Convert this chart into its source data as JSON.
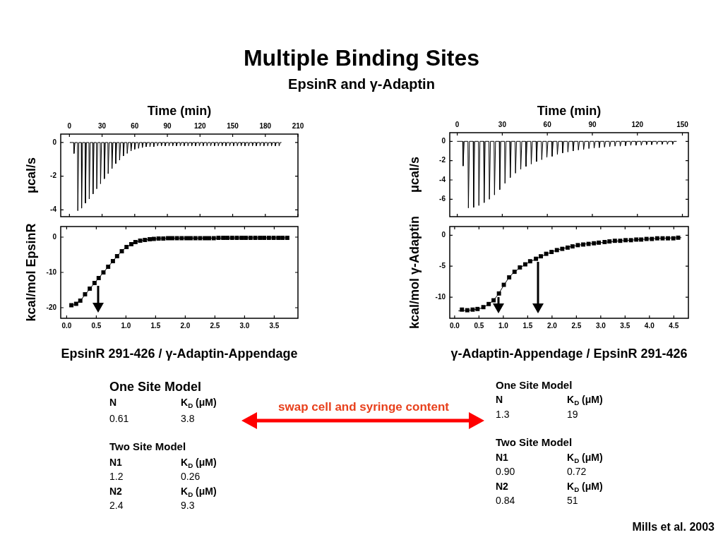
{
  "chart_data": [
    {
      "type": "other",
      "title": "Multiple Binding Sites",
      "subtitle": "EpsinR and γ-Adaptin"
    },
    {
      "type": "line",
      "xlabel": "Time (min)",
      "ylabel": "μcal/s",
      "xlim": [
        -8,
        210
      ],
      "xticks": [
        0,
        30,
        60,
        90,
        120,
        150,
        180,
        210
      ],
      "ylim": [
        -4.4,
        0.5
      ],
      "yticks": [
        -4,
        -2,
        0
      ],
      "grid": false,
      "marker": "none",
      "series": [
        {
          "color": "#000000",
          "x": [
            0.4,
            3.9,
            4.2,
            5.1,
            7.4,
            7.7,
            8.6,
            10.9,
            11.2,
            12.1,
            14.4,
            14.7,
            15.6,
            17.9,
            18.2,
            19.1,
            21.4,
            21.7,
            22.6,
            24.8,
            25.1,
            26.0,
            28.3,
            28.6,
            29.5,
            31.8,
            32.1,
            33.0,
            35.3,
            35.6,
            36.5,
            38.8,
            39.1,
            40.0,
            42.3,
            42.6,
            43.5,
            45.8,
            46.1,
            47.0,
            49.3,
            49.6,
            50.5,
            52.8,
            53.1,
            54.0,
            56.3,
            56.6,
            57.5,
            59.7,
            60.0,
            60.9,
            63.2,
            63.5,
            64.4,
            66.7,
            67.0,
            67.9,
            70.2,
            70.5,
            71.4,
            73.7,
            74.0,
            74.9,
            77.2,
            77.5,
            78.4,
            80.7,
            81.0,
            81.9,
            84.2,
            84.5,
            85.4,
            87.7,
            88.0,
            88.9,
            91.2,
            91.5,
            92.4,
            94.6,
            94.9,
            95.8,
            98.1,
            98.4,
            99.3,
            101.6,
            101.9,
            102.8,
            105.1,
            105.4,
            106.3,
            108.6,
            108.9,
            109.8,
            112.1,
            112.4,
            113.3,
            115.6,
            115.9,
            116.8,
            119.1,
            119.4,
            120.3,
            122.6,
            122.9,
            123.8,
            126.1,
            126.4,
            127.3,
            129.5,
            129.8,
            130.7,
            133.0,
            133.3,
            134.2,
            136.5,
            136.8,
            137.7,
            140.0,
            140.3,
            141.2,
            143.5,
            143.8,
            144.7,
            147.0,
            147.3,
            148.2,
            150.5,
            150.8,
            151.7,
            154.0,
            154.3,
            155.2,
            157.5,
            157.8,
            158.7,
            161.0,
            161.3,
            162.2,
            164.4,
            164.7,
            165.6,
            167.9,
            168.2,
            169.1,
            171.4,
            171.7,
            172.6,
            174.9,
            175.2,
            176.1,
            178.4,
            178.7,
            179.6,
            181.9,
            182.2,
            183.1,
            185.4,
            185.7,
            186.6,
            188.9,
            189.2,
            190.1,
            192.4,
            192.7,
            193.6,
            194.6
          ],
          "values": [
            0,
            0,
            -0.65,
            0,
            0,
            -4.05,
            0,
            0,
            -3.9,
            0,
            0,
            -3.6,
            0,
            0,
            -3.35,
            0,
            0,
            -3.05,
            0,
            0,
            -2.75,
            0,
            0,
            -2.45,
            0,
            0,
            -2.15,
            0,
            0,
            -1.85,
            0,
            0,
            -1.55,
            0,
            0,
            -1.25,
            0,
            0,
            -1.05,
            0,
            0,
            -0.8,
            0,
            0,
            -0.65,
            0,
            0,
            -0.5,
            0,
            0,
            -0.4,
            0,
            0,
            -0.35,
            0,
            0,
            -0.3,
            0,
            0,
            -0.25,
            0,
            0,
            -0.25,
            0,
            0,
            -0.25,
            0,
            0,
            -0.2,
            0,
            0,
            -0.2,
            0,
            0,
            -0.2,
            0,
            0,
            -0.2,
            0,
            0,
            -0.2,
            0,
            0,
            -0.2,
            0,
            0,
            -0.2,
            0,
            0,
            -0.2,
            0,
            0,
            -0.2,
            0,
            0,
            -0.2,
            0,
            0,
            -0.2,
            0,
            0,
            -0.2,
            0,
            0,
            -0.2,
            0,
            0,
            -0.2,
            0,
            0,
            -0.2,
            0,
            0,
            -0.2,
            0,
            0,
            -0.2,
            0,
            0,
            -0.2,
            0,
            0,
            -0.2,
            0,
            0,
            -0.2,
            0,
            0,
            -0.2,
            0,
            0,
            -0.2,
            0,
            0,
            -0.2,
            0,
            0,
            -0.2,
            0,
            0,
            -0.2,
            0,
            0,
            -0.2,
            0,
            0,
            -0.2,
            0,
            0,
            -0.2,
            0,
            0,
            -0.2,
            0,
            0,
            -0.2,
            0,
            0,
            -0.2,
            0,
            0,
            -0.2,
            0,
            0,
            -0.2,
            0,
            0
          ]
        }
      ]
    },
    {
      "type": "scatter",
      "xlabel": "EpsinR 291-426 / γ-Adaptin-Appendage",
      "ylabel": "kcal/mol EpsinR",
      "xlim": [
        -0.1,
        3.9
      ],
      "xticks": [
        {
          "value": 0,
          "label": "0.0"
        },
        0.5,
        {
          "value": 1,
          "label": "1.0"
        },
        1.5,
        {
          "value": 2,
          "label": "2.0"
        },
        2.5,
        {
          "value": 3,
          "label": "3.0"
        },
        3.5
      ],
      "ylim": [
        -23,
        3
      ],
      "yticks": [
        -20,
        -10,
        0
      ],
      "grid": false,
      "series": [
        {
          "color": "#000000",
          "marker": "square",
          "x": [
            0.08,
            0.16,
            0.23,
            0.31,
            0.39,
            0.47,
            0.54,
            0.62,
            0.7,
            0.78,
            0.85,
            0.93,
            1.01,
            1.09,
            1.16,
            1.24,
            1.32,
            1.4,
            1.47,
            1.55,
            1.63,
            1.71,
            1.78,
            1.86,
            1.94,
            2.02,
            2.09,
            2.17,
            2.25,
            2.33,
            2.4,
            2.48,
            2.56,
            2.64,
            2.71,
            2.79,
            2.87,
            2.95,
            3.02,
            3.1,
            3.18,
            3.26,
            3.33,
            3.41,
            3.49,
            3.57,
            3.64,
            3.72
          ],
          "values": [
            -19.3,
            -18.9,
            -18.0,
            -16.2,
            -14.6,
            -13.0,
            -11.6,
            -10.0,
            -8.4,
            -6.8,
            -5.4,
            -4.0,
            -2.8,
            -2.0,
            -1.4,
            -1.0,
            -0.8,
            -0.6,
            -0.5,
            -0.4,
            -0.4,
            -0.3,
            -0.3,
            -0.3,
            -0.3,
            -0.3,
            -0.3,
            -0.3,
            -0.3,
            -0.3,
            -0.3,
            -0.3,
            -0.2,
            -0.2,
            -0.2,
            -0.2,
            -0.2,
            -0.2,
            -0.2,
            -0.2,
            -0.2,
            -0.2,
            -0.2,
            -0.2,
            -0.2,
            -0.2,
            -0.2,
            -0.2
          ]
        },
        {
          "type": "line",
          "color": "#000000",
          "marker": "none",
          "x": [
            0.05,
            0.15,
            0.25,
            0.35,
            0.45,
            0.55,
            0.65,
            0.75,
            0.85,
            0.95,
            1.05,
            1.15,
            1.25,
            1.4,
            1.6,
            2.0,
            2.5,
            3.0,
            3.72
          ],
          "values": [
            -19.6,
            -19.0,
            -17.6,
            -15.5,
            -13.4,
            -11.4,
            -9.4,
            -7.4,
            -5.4,
            -3.6,
            -2.4,
            -1.5,
            -1.0,
            -0.6,
            -0.4,
            -0.3,
            -0.3,
            -0.2,
            -0.2
          ]
        }
      ]
    },
    {
      "type": "line",
      "xlabel": "Time (min)",
      "ylabel": "μcal/s",
      "xlim": [
        -5,
        154
      ],
      "xticks": [
        0,
        30,
        60,
        90,
        120,
        150
      ],
      "ylim": [
        -7.8,
        0.9
      ],
      "yticks": [
        -6,
        -4,
        -2,
        0
      ],
      "grid": false,
      "marker": "none",
      "series": [
        {
          "color": "#000000",
          "x": [
            0,
            3.6,
            3.9,
            4.6,
            7.1,
            7.4,
            8.1,
            10.6,
            10.9,
            11.6,
            14.1,
            14.4,
            15.1,
            17.6,
            17.9,
            18.6,
            21.1,
            21.4,
            22.1,
            24.5,
            24.8,
            25.5,
            28.0,
            28.3,
            29.0,
            31.5,
            31.8,
            32.5,
            35.0,
            35.3,
            36.0,
            38.5,
            38.8,
            39.5,
            42.0,
            42.3,
            43.0,
            45.5,
            45.8,
            46.5,
            49.0,
            49.3,
            50.0,
            52.5,
            52.8,
            53.5,
            56.0,
            56.3,
            57.0,
            59.4,
            59.7,
            60.4,
            62.9,
            63.2,
            63.9,
            66.4,
            66.7,
            67.4,
            69.9,
            70.2,
            70.9,
            73.4,
            73.7,
            74.4,
            76.9,
            77.2,
            77.9,
            80.4,
            80.7,
            81.4,
            83.9,
            84.2,
            84.9,
            87.4,
            87.7,
            88.4,
            90.9,
            91.2,
            91.9,
            94.3,
            94.6,
            95.3,
            97.8,
            98.1,
            98.8,
            101.3,
            101.6,
            102.3,
            104.8,
            105.1,
            105.8,
            108.3,
            108.6,
            109.3,
            111.8,
            112.1,
            112.8,
            115.3,
            115.6,
            116.3,
            118.8,
            119.1,
            119.8,
            122.3,
            122.6,
            123.3,
            125.8,
            126.1,
            126.8,
            129.2,
            129.5,
            130.2,
            132.7,
            133.0,
            133.7,
            136.2,
            136.5,
            137.2,
            139.7,
            140.0,
            140.7,
            143.2,
            143.5,
            144.2,
            146.0
          ],
          "values": [
            0,
            0,
            -2.55,
            0,
            0,
            -6.9,
            0,
            0,
            -6.85,
            0,
            0,
            -6.65,
            0,
            0,
            -6.35,
            0,
            0,
            -6.0,
            0,
            0,
            -5.55,
            0,
            0,
            -5.0,
            0,
            0,
            -4.35,
            0,
            0,
            -3.75,
            0,
            0,
            -3.3,
            0,
            0,
            -2.9,
            0,
            0,
            -2.6,
            0,
            0,
            -2.35,
            0,
            0,
            -2.1,
            0,
            0,
            -1.9,
            0,
            0,
            -1.65,
            0,
            0,
            -1.55,
            0,
            0,
            -1.35,
            0,
            0,
            -1.2,
            0,
            0,
            -1.1,
            0,
            0,
            -1.0,
            0,
            0,
            -0.9,
            0,
            0,
            -0.85,
            0,
            0,
            -0.75,
            0,
            0,
            -0.7,
            0,
            0,
            -0.65,
            0,
            0,
            -0.6,
            0,
            0,
            -0.55,
            0,
            0,
            -0.5,
            0,
            0,
            -0.5,
            0,
            0,
            -0.45,
            0,
            0,
            -0.4,
            0,
            0,
            -0.4,
            0,
            0,
            -0.4,
            0,
            0,
            -0.35,
            0,
            0,
            -0.35,
            0,
            0,
            -0.3,
            0,
            0,
            -0.3,
            0,
            0,
            -0.3,
            0,
            0,
            -0.3,
            0,
            0
          ]
        }
      ]
    },
    {
      "type": "scatter",
      "xlabel": "γ-Adaptin-Appendage / EpsinR 291-426",
      "ylabel": "kcal/mol γ-Adaptin",
      "xlim": [
        -0.1,
        4.8
      ],
      "xticks": [
        {
          "value": 0,
          "label": "0.0"
        },
        0.5,
        {
          "value": 1,
          "label": "1.0"
        },
        1.5,
        {
          "value": 2,
          "label": "2.0"
        },
        2.5,
        {
          "value": 3,
          "label": "3.0"
        },
        3.5,
        {
          "value": 4,
          "label": "4.0"
        },
        4.5
      ],
      "ylim": [
        -13.4,
        1.4
      ],
      "yticks": [
        -10,
        -5,
        0
      ],
      "grid": false,
      "series": [
        {
          "color": "#000000",
          "marker": "square",
          "x": [
            0.15,
            0.26,
            0.37,
            0.47,
            0.59,
            0.7,
            0.8,
            0.91,
            1.01,
            1.12,
            1.23,
            1.34,
            1.45,
            1.55,
            1.67,
            1.77,
            1.88,
            1.99,
            2.1,
            2.21,
            2.32,
            2.42,
            2.53,
            2.64,
            2.75,
            2.86,
            2.96,
            3.08,
            3.18,
            3.29,
            3.4,
            3.51,
            3.62,
            3.73,
            3.83,
            3.94,
            4.05,
            4.16,
            4.27,
            4.38,
            4.49,
            4.59
          ],
          "values": [
            -12.0,
            -12.1,
            -12.0,
            -11.9,
            -11.6,
            -11.1,
            -10.5,
            -9.4,
            -8.0,
            -6.8,
            -5.9,
            -5.2,
            -4.7,
            -4.2,
            -3.8,
            -3.4,
            -3.0,
            -2.7,
            -2.4,
            -2.2,
            -2.0,
            -1.8,
            -1.6,
            -1.5,
            -1.4,
            -1.3,
            -1.2,
            -1.1,
            -1.0,
            -0.9,
            -0.9,
            -0.8,
            -0.8,
            -0.7,
            -0.7,
            -0.6,
            -0.6,
            -0.5,
            -0.5,
            -0.5,
            -0.5,
            -0.4
          ]
        },
        {
          "type": "line",
          "color": "#000000",
          "marker": "none",
          "x": [
            0.08,
            0.3,
            0.5,
            0.6,
            0.7,
            0.8,
            0.9,
            1.0,
            1.1,
            1.2,
            1.35,
            1.5,
            1.7,
            1.9,
            2.1,
            2.4,
            2.7,
            3.0,
            3.4,
            3.8,
            4.2,
            4.65
          ],
          "values": [
            -12.2,
            -12.1,
            -11.9,
            -11.6,
            -11.1,
            -10.5,
            -9.5,
            -8.2,
            -7.0,
            -6.1,
            -5.2,
            -4.5,
            -3.7,
            -3.0,
            -2.4,
            -1.8,
            -1.4,
            -1.2,
            -0.9,
            -0.7,
            -0.5,
            -0.4
          ]
        }
      ]
    },
    {
      "type": "other",
      "title": "One Site Model",
      "annotations": [
        "N",
        "K$_{D}$ (μM)",
        "0.61",
        "3.8"
      ]
    },
    {
      "type": "other",
      "title": "Two Site Model",
      "annotations": [
        "N1",
        "K$_{D}$ (μM)",
        "1.2",
        "0.26",
        "N2",
        "K$_{D}$ (μM)",
        "2.4",
        "9.3"
      ]
    },
    {
      "type": "other",
      "annotations": [
        "swap cell and syringe content"
      ]
    },
    {
      "type": "other",
      "title": "One Site Model",
      "annotations": [
        "N",
        "K$_{D}$ (μM)",
        "1.3",
        "19"
      ]
    },
    {
      "type": "other",
      "title": "Two Site Model",
      "annotations": [
        "N1",
        "K$_{D}$ (μM)",
        "0.90",
        "0.72",
        "N2",
        "K$_{D}$ (μM)",
        "0.84",
        "51"
      ]
    },
    {
      "type": "other",
      "annotations": [
        "Mills et al. 2003"
      ]
    }
  ]
}
